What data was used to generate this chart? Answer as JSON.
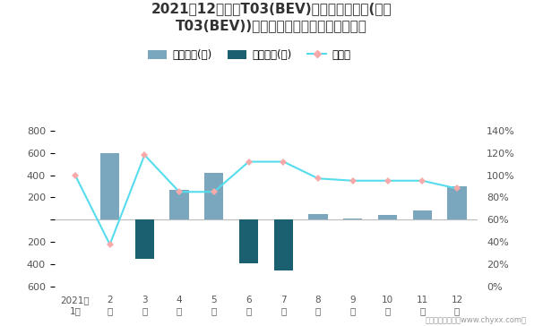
{
  "title_line1": "2021年12月零跑T03(BEV)旗下最畅销轿车(零跑",
  "title_line2": "T03(BEV))近一年库存情况及产销率统计图",
  "months": [
    "2021年\n1月",
    "2\n月",
    "3\n月",
    "4\n月",
    "5\n月",
    "6\n月",
    "7\n月",
    "8\n月",
    "9\n月",
    "10\n月",
    "11\n月",
    "12\n月"
  ],
  "jiyo_values": [
    0,
    600,
    0,
    270,
    420,
    0,
    0,
    50,
    10,
    40,
    80,
    300
  ],
  "qingcang_values": [
    0,
    0,
    -350,
    0,
    0,
    -390,
    -450,
    0,
    0,
    0,
    0,
    0
  ],
  "production_rate": [
    1.0,
    0.38,
    1.18,
    0.85,
    0.85,
    1.12,
    1.12,
    0.97,
    0.95,
    0.95,
    0.95,
    0.88
  ],
  "bar_color_jiyo": "#7BA7BE",
  "bar_color_qingcang": "#1A6070",
  "line_color": "#55DDEE",
  "marker_facecolor": "#F8AAAA",
  "marker_edgecolor": "#F8AAAA",
  "zero_line_color": "#BBBBBB",
  "title_color": "#333333",
  "tick_color": "#555555",
  "background_color": "#FFFFFF",
  "ylim_left": [
    -600,
    800
  ],
  "ylim_right": [
    0.0,
    1.4
  ],
  "yticks_left": [
    -600,
    -400,
    -200,
    0,
    200,
    400,
    600,
    800
  ],
  "yticks_right": [
    0.0,
    0.2,
    0.4,
    0.6,
    0.8,
    1.0,
    1.2,
    1.4
  ],
  "ytick_labels_left": [
    "600",
    "400",
    "200",
    "",
    "200",
    "400",
    "600",
    "800"
  ],
  "ytick_labels_right": [
    "0%",
    "20%",
    "40%",
    "60%",
    "80%",
    "100%",
    "120%",
    "140%"
  ],
  "legend_jiyo": "积压库存(辆)",
  "legend_qingcang": "清仓库存(辆)",
  "legend_rate": "产销率",
  "footer": "制图：智研咨询（www.chyxx.com）"
}
